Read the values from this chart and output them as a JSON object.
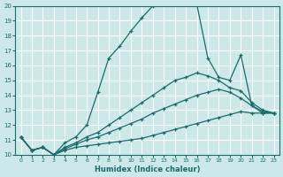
{
  "xlabel": "Humidex (Indice chaleur)",
  "bg_color": "#cce8e8",
  "grid_color": "#ffffff",
  "line_color": "#1a6b6b",
  "xlim": [
    -0.5,
    23.5
  ],
  "ylim": [
    10,
    20
  ],
  "yticks": [
    10,
    11,
    12,
    13,
    14,
    15,
    16,
    17,
    18,
    19,
    20
  ],
  "xticks": [
    0,
    1,
    2,
    3,
    4,
    5,
    6,
    7,
    8,
    9,
    10,
    11,
    12,
    13,
    14,
    15,
    16,
    17,
    18,
    19,
    20,
    21,
    22,
    23
  ],
  "lines": [
    {
      "x": [
        0,
        1,
        2,
        3,
        4,
        5,
        6,
        7,
        8,
        9,
        10,
        11,
        12,
        13,
        14,
        15,
        16,
        17,
        18,
        19,
        20,
        21,
        22,
        23
      ],
      "y": [
        11.2,
        10.3,
        10.5,
        10.0,
        10.3,
        10.5,
        10.6,
        10.7,
        10.8,
        10.9,
        11.0,
        11.1,
        11.3,
        11.5,
        11.7,
        11.9,
        12.1,
        12.3,
        12.5,
        12.7,
        12.9,
        12.8,
        12.8,
        12.8
      ]
    },
    {
      "x": [
        0,
        1,
        2,
        3,
        4,
        5,
        6,
        7,
        8,
        9,
        10,
        11,
        12,
        13,
        14,
        15,
        16,
        17,
        18,
        19,
        20,
        21,
        22,
        23
      ],
      "y": [
        11.2,
        10.3,
        10.5,
        10.0,
        10.4,
        10.7,
        11.0,
        11.2,
        11.5,
        11.8,
        12.1,
        12.4,
        12.8,
        13.1,
        13.4,
        13.7,
        14.0,
        14.2,
        14.4,
        14.2,
        13.8,
        13.3,
        12.9,
        12.8
      ]
    },
    {
      "x": [
        0,
        1,
        2,
        3,
        4,
        5,
        6,
        7,
        8,
        9,
        10,
        11,
        12,
        13,
        14,
        15,
        16,
        17,
        18,
        19,
        20,
        21,
        22,
        23
      ],
      "y": [
        11.2,
        10.3,
        10.5,
        10.0,
        10.5,
        10.8,
        11.2,
        11.5,
        12.0,
        12.5,
        13.0,
        13.5,
        14.0,
        14.5,
        15.0,
        15.2,
        15.5,
        15.3,
        15.0,
        14.5,
        14.3,
        13.5,
        13.0,
        12.8
      ]
    },
    {
      "x": [
        0,
        1,
        2,
        3,
        4,
        5,
        6,
        7,
        8,
        9,
        10,
        11,
        12,
        13,
        14,
        15,
        16,
        17,
        18,
        19,
        20,
        21,
        22,
        23
      ],
      "y": [
        11.2,
        10.3,
        10.5,
        10.0,
        10.8,
        11.2,
        12.0,
        14.2,
        16.5,
        17.3,
        18.3,
        19.2,
        20.0,
        20.1,
        20.2,
        20.2,
        20.1,
        16.5,
        15.2,
        15.0,
        16.7,
        13.3,
        12.8,
        12.8
      ]
    }
  ]
}
